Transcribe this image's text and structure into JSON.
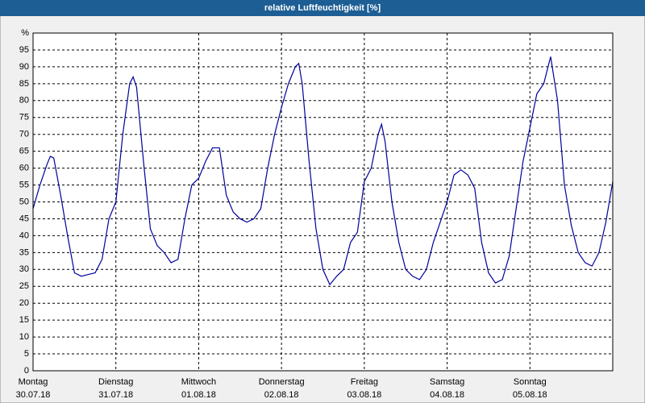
{
  "chart_data": {
    "type": "line",
    "title": "relative Luftfeuchtigkeit [%]",
    "x": [
      0,
      2,
      4,
      5,
      6,
      8,
      10,
      12,
      14,
      16,
      18,
      20,
      22,
      24,
      26,
      28,
      29,
      30,
      32,
      34,
      36,
      38,
      40,
      42,
      44,
      46,
      48,
      50,
      52,
      54,
      56,
      58,
      60,
      62,
      64,
      66,
      68,
      70,
      72,
      74,
      76,
      77,
      78,
      80,
      82,
      84,
      86,
      88,
      90,
      92,
      94,
      96,
      98,
      100,
      101,
      102,
      104,
      106,
      108,
      110,
      112,
      114,
      116,
      118,
      120,
      122,
      124,
      126,
      128,
      130,
      132,
      134,
      136,
      138,
      140,
      142,
      144,
      146,
      148,
      150,
      152,
      154,
      156,
      158,
      160,
      162,
      164,
      166,
      168
    ],
    "series": [
      {
        "name": "relative Luftfeuchtigkeit",
        "color": "#000099",
        "values": [
          48,
          55,
          61,
          63.5,
          63,
          52,
          40,
          29,
          28,
          28.5,
          29,
          33,
          45,
          50,
          70,
          85,
          87,
          84,
          62,
          42,
          37,
          35,
          32,
          33,
          45,
          55,
          57,
          62,
          66,
          66,
          52,
          47,
          45,
          44,
          45,
          48,
          60,
          70,
          78,
          85,
          90,
          91,
          85,
          62,
          42,
          30,
          25.5,
          28,
          30,
          38,
          41,
          56,
          60,
          70,
          73,
          68,
          50,
          38,
          30,
          28,
          27,
          30,
          38,
          44,
          50,
          58,
          59.5,
          58,
          54,
          38,
          29,
          26,
          27,
          34,
          48,
          62,
          72,
          82,
          85,
          93,
          80,
          55,
          43,
          35,
          32,
          31,
          35,
          44,
          56
        ]
      }
    ],
    "xlim": [
      0,
      168
    ],
    "xticks": [
      {
        "value": 0,
        "label": "Montag 30.07.18"
      },
      {
        "value": 24,
        "label": "Dienstag 31.07.18"
      },
      {
        "value": 48,
        "label": "Mittwoch 01.08.18"
      },
      {
        "value": 72,
        "label": "Donnerstag 02.08.18"
      },
      {
        "value": 96,
        "label": "Freitag 03.08.18"
      },
      {
        "value": 120,
        "label": "Samstag 04.08.18"
      },
      {
        "value": 144,
        "label": "Sonntag 05.08.18"
      }
    ],
    "ylim": [
      0,
      100
    ],
    "yticks": [
      0,
      5,
      10,
      15,
      20,
      25,
      30,
      35,
      40,
      45,
      50,
      55,
      60,
      65,
      70,
      75,
      80,
      85,
      90,
      95,
      {
        "value": 100,
        "label": "%"
      }
    ],
    "grid": true
  }
}
